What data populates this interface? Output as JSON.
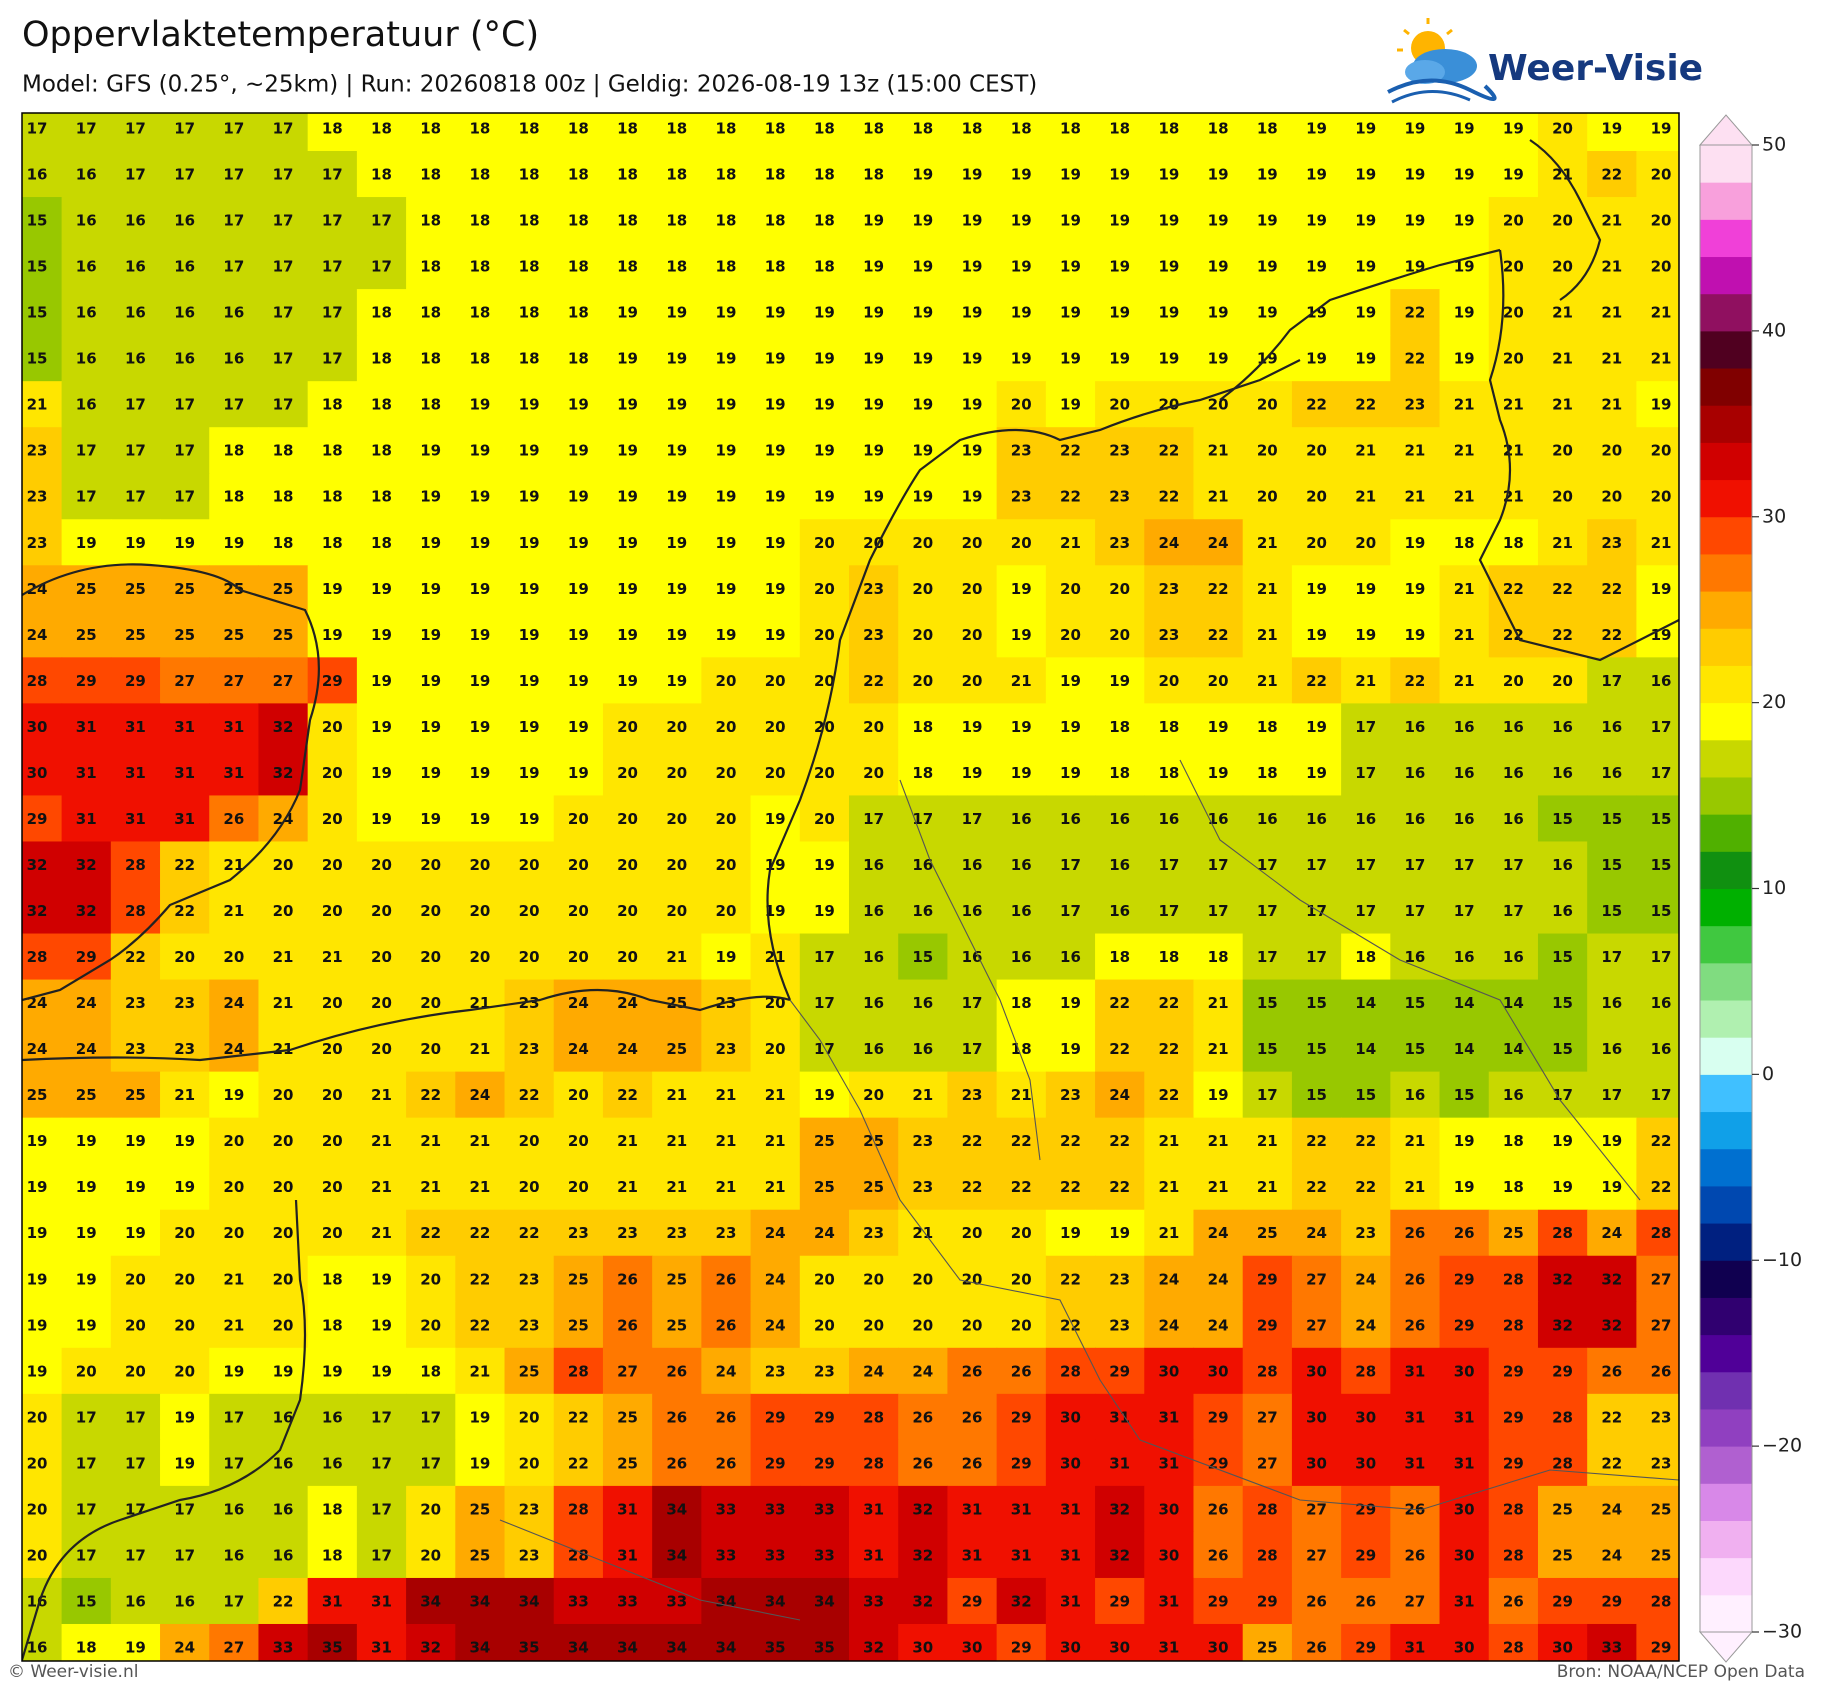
{
  "header": {
    "title": "Oppervlaktetemperatuur (°C)",
    "subtitle": "Model: GFS (0.25°, ~25km)  |  Run: 20260818 00z  |  Geldig: 2026-08-19 13z (15:00 CEST)",
    "logo": "Weer-Visie"
  },
  "grid": {
    "rows": [
      [
        17,
        17,
        17,
        17,
        17,
        17,
        18,
        18,
        18,
        18,
        18,
        18,
        18,
        18,
        18,
        18,
        18,
        18,
        18,
        18,
        18,
        18,
        18,
        18,
        18,
        18,
        19,
        19,
        19,
        19,
        19,
        20,
        19,
        19
      ],
      [
        16,
        16,
        17,
        17,
        17,
        17,
        17,
        18,
        18,
        18,
        18,
        18,
        18,
        18,
        18,
        18,
        18,
        18,
        19,
        19,
        19,
        19,
        19,
        19,
        19,
        19,
        19,
        19,
        19,
        19,
        19,
        21,
        22,
        20
      ],
      [
        15,
        16,
        16,
        16,
        17,
        17,
        17,
        17,
        18,
        18,
        18,
        18,
        18,
        18,
        18,
        18,
        18,
        19,
        19,
        19,
        19,
        19,
        19,
        19,
        19,
        19,
        19,
        19,
        19,
        19,
        20,
        20,
        21,
        20
      ],
      [
        15,
        16,
        16,
        16,
        17,
        17,
        17,
        17,
        18,
        18,
        18,
        18,
        18,
        18,
        18,
        18,
        18,
        19,
        19,
        19,
        19,
        19,
        19,
        19,
        19,
        19,
        19,
        19,
        19,
        19,
        20,
        20,
        21,
        20
      ],
      [
        15,
        16,
        16,
        16,
        16,
        17,
        17,
        18,
        18,
        18,
        18,
        18,
        19,
        19,
        19,
        19,
        19,
        19,
        19,
        19,
        19,
        19,
        19,
        19,
        19,
        19,
        19,
        19,
        22,
        19,
        20,
        21,
        21,
        21
      ],
      [
        15,
        16,
        16,
        16,
        16,
        17,
        17,
        18,
        18,
        18,
        18,
        18,
        19,
        19,
        19,
        19,
        19,
        19,
        19,
        19,
        19,
        19,
        19,
        19,
        19,
        19,
        19,
        19,
        22,
        19,
        20,
        21,
        21,
        21
      ],
      [
        21,
        16,
        17,
        17,
        17,
        17,
        18,
        18,
        18,
        19,
        19,
        19,
        19,
        19,
        19,
        19,
        19,
        19,
        19,
        19,
        20,
        19,
        20,
        20,
        20,
        20,
        22,
        22,
        23,
        21,
        21,
        21,
        21,
        19
      ],
      [
        23,
        17,
        17,
        17,
        18,
        18,
        18,
        18,
        19,
        19,
        19,
        19,
        19,
        19,
        19,
        19,
        19,
        19,
        19,
        19,
        23,
        22,
        23,
        22,
        21,
        20,
        20,
        21,
        21,
        21,
        21,
        20,
        20,
        20
      ],
      [
        23,
        17,
        17,
        17,
        18,
        18,
        18,
        18,
        19,
        19,
        19,
        19,
        19,
        19,
        19,
        19,
        19,
        19,
        19,
        19,
        23,
        22,
        23,
        22,
        21,
        20,
        20,
        21,
        21,
        21,
        21,
        20,
        20,
        20
      ],
      [
        23,
        19,
        19,
        19,
        19,
        18,
        18,
        18,
        19,
        19,
        19,
        19,
        19,
        19,
        19,
        19,
        20,
        20,
        20,
        20,
        20,
        21,
        23,
        24,
        24,
        21,
        20,
        20,
        19,
        18,
        18,
        21,
        23,
        21
      ],
      [
        24,
        25,
        25,
        25,
        25,
        25,
        19,
        19,
        19,
        19,
        19,
        19,
        19,
        19,
        19,
        19,
        20,
        23,
        20,
        20,
        19,
        20,
        20,
        23,
        22,
        21,
        19,
        19,
        19,
        21,
        22,
        22,
        22,
        19
      ],
      [
        24,
        25,
        25,
        25,
        25,
        25,
        19,
        19,
        19,
        19,
        19,
        19,
        19,
        19,
        19,
        19,
        20,
        23,
        20,
        20,
        19,
        20,
        20,
        23,
        22,
        21,
        19,
        19,
        19,
        21,
        22,
        22,
        22,
        19
      ],
      [
        28,
        29,
        29,
        27,
        27,
        27,
        29,
        19,
        19,
        19,
        19,
        19,
        19,
        19,
        20,
        20,
        20,
        22,
        20,
        20,
        21,
        19,
        19,
        20,
        20,
        21,
        22,
        21,
        22,
        21,
        20,
        20,
        17,
        16
      ],
      [
        30,
        31,
        31,
        31,
        31,
        32,
        20,
        19,
        19,
        19,
        19,
        19,
        20,
        20,
        20,
        20,
        20,
        20,
        18,
        19,
        19,
        19,
        18,
        18,
        19,
        18,
        19,
        17,
        16,
        16,
        16,
        16,
        16,
        17
      ],
      [
        30,
        31,
        31,
        31,
        31,
        32,
        20,
        19,
        19,
        19,
        19,
        19,
        20,
        20,
        20,
        20,
        20,
        20,
        18,
        19,
        19,
        19,
        18,
        18,
        19,
        18,
        19,
        17,
        16,
        16,
        16,
        16,
        16,
        17
      ],
      [
        29,
        31,
        31,
        31,
        26,
        24,
        20,
        19,
        19,
        19,
        19,
        20,
        20,
        20,
        20,
        19,
        20,
        17,
        17,
        17,
        16,
        16,
        16,
        16,
        16,
        16,
        16,
        16,
        16,
        16,
        16,
        15,
        15,
        15
      ],
      [
        32,
        32,
        28,
        22,
        21,
        20,
        20,
        20,
        20,
        20,
        20,
        20,
        20,
        20,
        20,
        19,
        19,
        16,
        16,
        16,
        16,
        17,
        16,
        17,
        17,
        17,
        17,
        17,
        17,
        17,
        17,
        16,
        15,
        15
      ],
      [
        32,
        32,
        28,
        22,
        21,
        20,
        20,
        20,
        20,
        20,
        20,
        20,
        20,
        20,
        20,
        19,
        19,
        16,
        16,
        16,
        16,
        17,
        16,
        17,
        17,
        17,
        17,
        17,
        17,
        17,
        17,
        16,
        15,
        15
      ],
      [
        28,
        29,
        22,
        20,
        20,
        21,
        21,
        20,
        20,
        20,
        20,
        20,
        20,
        21,
        19,
        21,
        17,
        16,
        15,
        16,
        16,
        16,
        18,
        18,
        18,
        17,
        17,
        18,
        16,
        16,
        16,
        15,
        17,
        17
      ],
      [
        24,
        24,
        23,
        23,
        24,
        21,
        20,
        20,
        20,
        21,
        23,
        24,
        24,
        25,
        23,
        20,
        17,
        16,
        16,
        17,
        18,
        19,
        22,
        22,
        21,
        15,
        15,
        14,
        15,
        14,
        14,
        15,
        16,
        16
      ],
      [
        24,
        24,
        23,
        23,
        24,
        21,
        20,
        20,
        20,
        21,
        23,
        24,
        24,
        25,
        23,
        20,
        17,
        16,
        16,
        17,
        18,
        19,
        22,
        22,
        21,
        15,
        15,
        14,
        15,
        14,
        14,
        15,
        16,
        16
      ],
      [
        25,
        25,
        25,
        21,
        19,
        20,
        20,
        21,
        22,
        24,
        22,
        20,
        22,
        21,
        21,
        21,
        19,
        20,
        21,
        23,
        21,
        23,
        24,
        22,
        19,
        17,
        15,
        15,
        16,
        15,
        16,
        17,
        17,
        17
      ],
      [
        19,
        19,
        19,
        19,
        20,
        20,
        20,
        21,
        21,
        21,
        20,
        20,
        21,
        21,
        21,
        21,
        25,
        25,
        23,
        22,
        22,
        22,
        22,
        21,
        21,
        21,
        22,
        22,
        21,
        19,
        18,
        19,
        19,
        22
      ],
      [
        19,
        19,
        19,
        19,
        20,
        20,
        20,
        21,
        21,
        21,
        20,
        20,
        21,
        21,
        21,
        21,
        25,
        25,
        23,
        22,
        22,
        22,
        22,
        21,
        21,
        21,
        22,
        22,
        21,
        19,
        18,
        19,
        19,
        22
      ],
      [
        19,
        19,
        19,
        20,
        20,
        20,
        20,
        21,
        22,
        22,
        22,
        23,
        23,
        23,
        23,
        24,
        24,
        23,
        21,
        20,
        20,
        19,
        19,
        21,
        24,
        25,
        24,
        23,
        26,
        26,
        25,
        28,
        24,
        28
      ],
      [
        19,
        19,
        20,
        20,
        21,
        20,
        18,
        19,
        20,
        22,
        23,
        25,
        26,
        25,
        26,
        24,
        20,
        20,
        20,
        20,
        20,
        22,
        23,
        24,
        24,
        29,
        27,
        24,
        26,
        29,
        28,
        32,
        32,
        27
      ],
      [
        19,
        19,
        20,
        20,
        21,
        20,
        18,
        19,
        20,
        22,
        23,
        25,
        26,
        25,
        26,
        24,
        20,
        20,
        20,
        20,
        20,
        22,
        23,
        24,
        24,
        29,
        27,
        24,
        26,
        29,
        28,
        32,
        32,
        27
      ],
      [
        19,
        20,
        20,
        20,
        19,
        19,
        19,
        19,
        18,
        21,
        25,
        28,
        27,
        26,
        24,
        23,
        23,
        24,
        24,
        26,
        26,
        28,
        29,
        30,
        30,
        28,
        30,
        28,
        31,
        30,
        29,
        29,
        26,
        26
      ],
      [
        20,
        17,
        17,
        19,
        17,
        16,
        16,
        17,
        17,
        19,
        20,
        22,
        25,
        26,
        26,
        29,
        29,
        28,
        26,
        26,
        29,
        30,
        31,
        31,
        29,
        27,
        30,
        30,
        31,
        31,
        29,
        28,
        22,
        23
      ],
      [
        20,
        17,
        17,
        19,
        17,
        16,
        16,
        17,
        17,
        19,
        20,
        22,
        25,
        26,
        26,
        29,
        29,
        28,
        26,
        26,
        29,
        30,
        31,
        31,
        29,
        27,
        30,
        30,
        31,
        31,
        29,
        28,
        22,
        23
      ],
      [
        20,
        17,
        17,
        17,
        16,
        16,
        18,
        17,
        20,
        25,
        23,
        28,
        31,
        34,
        33,
        33,
        33,
        31,
        32,
        31,
        31,
        31,
        32,
        30,
        26,
        28,
        27,
        29,
        26,
        30,
        28,
        25,
        24,
        25
      ],
      [
        20,
        17,
        17,
        17,
        16,
        16,
        18,
        17,
        20,
        25,
        23,
        28,
        31,
        34,
        33,
        33,
        33,
        31,
        32,
        31,
        31,
        31,
        32,
        30,
        26,
        28,
        27,
        29,
        26,
        30,
        28,
        25,
        24,
        25
      ],
      [
        16,
        15,
        16,
        16,
        17,
        22,
        31,
        31,
        34,
        34,
        34,
        33,
        33,
        33,
        34,
        34,
        34,
        33,
        32,
        29,
        32,
        31,
        29,
        31,
        29,
        29,
        26,
        26,
        27,
        31,
        26,
        29,
        29,
        28
      ],
      [
        16,
        18,
        19,
        24,
        27,
        33,
        35,
        31,
        32,
        34,
        35,
        34,
        34,
        34,
        34,
        35,
        35,
        32,
        30,
        30,
        29,
        30,
        30,
        31,
        30,
        25,
        26,
        29,
        31,
        30,
        28,
        30,
        33,
        29
      ]
    ]
  },
  "colorbar": {
    "lim": [
      -30,
      50
    ],
    "ticks": [
      50,
      40,
      30,
      20,
      10,
      0,
      {
        "value": -10,
        "label": "−10"
      },
      {
        "value": -20,
        "label": "−20"
      },
      {
        "value": -30,
        "label": "−30"
      }
    ],
    "colors": [
      "#fff0ff",
      "#fcd8fc",
      "#f0b0f0",
      "#d888e8",
      "#b060d0",
      "#9040c0",
      "#7030b0",
      "#500098",
      "#300070",
      "#100050",
      "#002080",
      "#0048b0",
      "#0070d0",
      "#10a0e8",
      "#40c0ff",
      "#d8fff0",
      "#b0f0b0",
      "#80dc80",
      "#40c840",
      "#00b000",
      "#109010",
      "#50b000",
      "#98c800",
      "#c8d800",
      "#ffff00",
      "#ffe600",
      "#ffcc00",
      "#ffaa00",
      "#ff7800",
      "#ff4800",
      "#f01000",
      "#d00000",
      "#a80000",
      "#800000",
      "#500020",
      "#901060",
      "#c010b0",
      "#f040d8",
      "#f8a0dc",
      "#fde0f2"
    ]
  },
  "footer": {
    "left": "© Weer-visie.nl",
    "right": "Bron: NOAA/NCEP Open Data"
  }
}
